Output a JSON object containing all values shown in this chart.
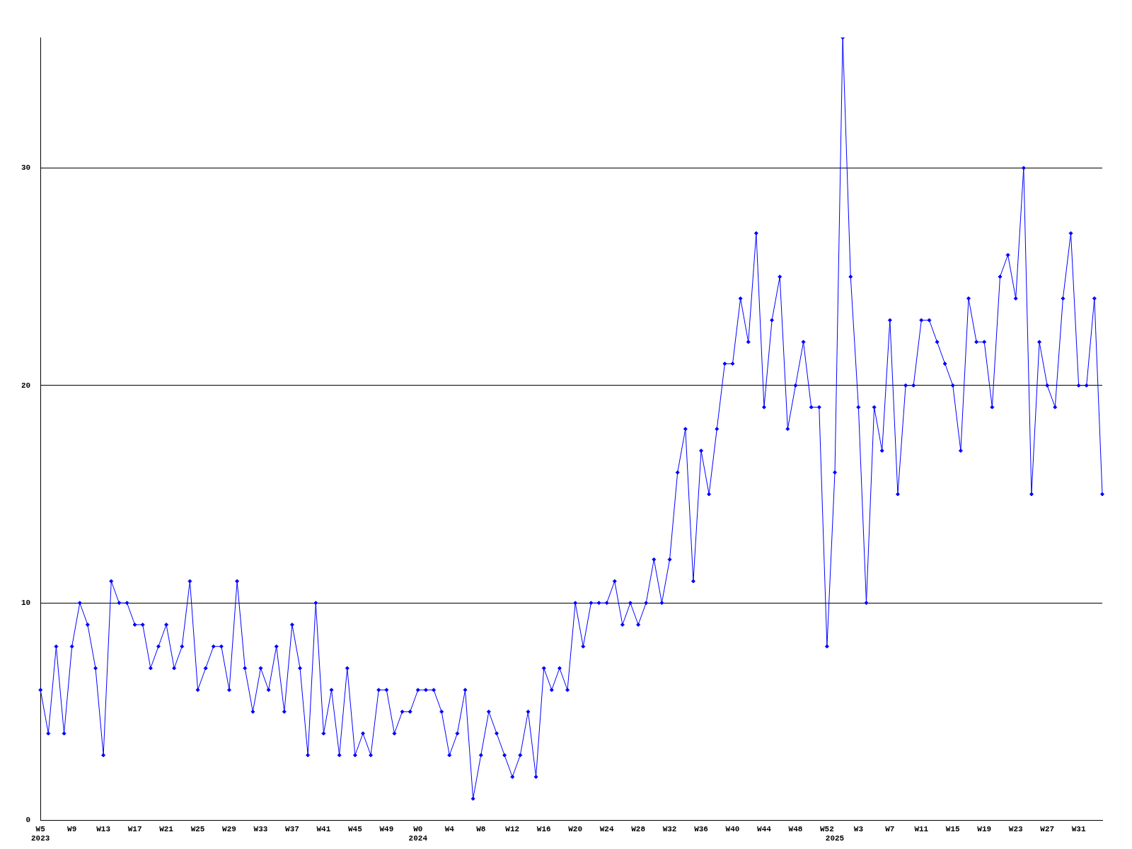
{
  "chart_data": {
    "type": "line",
    "color": "#0000ff",
    "marker": "diamond",
    "grid": "y",
    "ylim": [
      0,
      36
    ],
    "yticks": [
      0,
      10,
      20,
      30
    ],
    "categories": [
      "W5\n2023",
      null,
      null,
      null,
      "W9",
      null,
      null,
      null,
      "W13",
      null,
      null,
      null,
      "W17",
      null,
      null,
      null,
      "W21",
      null,
      null,
      null,
      "W25",
      null,
      null,
      null,
      "W29",
      null,
      null,
      null,
      "W33",
      null,
      null,
      null,
      "W37",
      null,
      null,
      null,
      "W41",
      null,
      null,
      null,
      "W45",
      null,
      null,
      null,
      "W49",
      null,
      null,
      null,
      "W0\n2024",
      null,
      null,
      null,
      "W4",
      null,
      null,
      null,
      "W8",
      null,
      null,
      null,
      "W12",
      null,
      null,
      null,
      "W16",
      null,
      null,
      null,
      "W20",
      null,
      null,
      null,
      "W24",
      null,
      null,
      null,
      "W28",
      null,
      null,
      null,
      "W32",
      null,
      null,
      null,
      "W36",
      null,
      null,
      null,
      "W40",
      null,
      null,
      null,
      "W44",
      null,
      null,
      null,
      "W48",
      null,
      null,
      null,
      "W52",
      "\n2025",
      null,
      null,
      "W3",
      null,
      null,
      null,
      "W7",
      null,
      null,
      null,
      "W11",
      null,
      null,
      null,
      "W15",
      null,
      null,
      null,
      "W19",
      null,
      null,
      null,
      "W23",
      null,
      null,
      null,
      "W27",
      null,
      null,
      null,
      "W31",
      null,
      null,
      null
    ],
    "values": [
      6,
      4,
      8,
      4,
      8,
      10,
      9,
      7,
      3,
      11,
      10,
      10,
      9,
      9,
      7,
      8,
      9,
      7,
      8,
      11,
      6,
      7,
      8,
      8,
      6,
      11,
      7,
      5,
      7,
      6,
      8,
      5,
      9,
      7,
      3,
      10,
      4,
      6,
      3,
      7,
      3,
      4,
      3,
      6,
      6,
      4,
      5,
      5,
      6,
      6,
      6,
      5,
      3,
      4,
      6,
      1,
      3,
      5,
      4,
      3,
      2,
      3,
      5,
      2,
      7,
      6,
      7,
      6,
      10,
      8,
      10,
      10,
      10,
      11,
      9,
      10,
      9,
      10,
      12,
      10,
      12,
      16,
      18,
      11,
      17,
      15,
      18,
      21,
      21,
      24,
      22,
      27,
      19,
      23,
      25,
      18,
      20,
      22,
      19,
      19,
      8,
      16,
      36,
      25,
      19,
      10,
      19,
      17,
      23,
      15,
      20,
      20,
      23,
      23,
      22,
      21,
      20,
      17,
      24,
      22,
      22,
      19,
      25,
      26,
      24,
      30,
      15,
      22,
      20,
      19,
      24,
      27,
      20,
      20,
      24,
      15
    ]
  }
}
